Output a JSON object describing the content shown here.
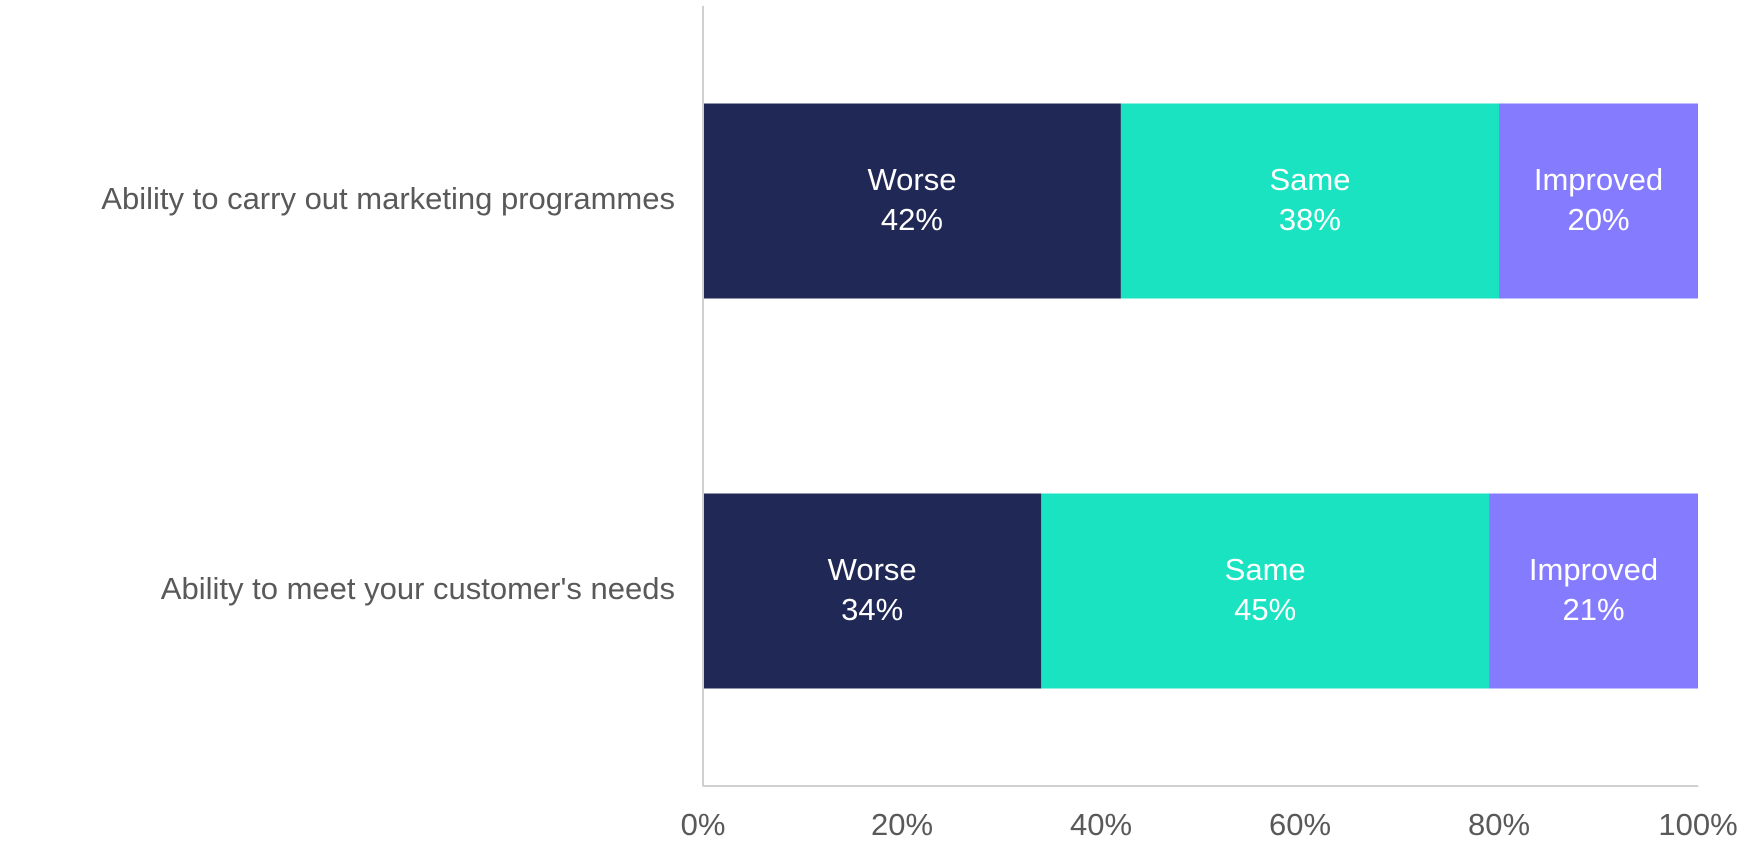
{
  "chart_data": {
    "type": "stacked_bar_horizontal",
    "categories": [
      "Ability to carry out marketing programmes",
      "Ability to meet your customer's needs"
    ],
    "series": [
      {
        "name": "Worse",
        "color": "#202855",
        "values": [
          42,
          34
        ],
        "value_labels": [
          "42%",
          "34%"
        ]
      },
      {
        "name": "Same",
        "color": "#1ae3c2",
        "values": [
          38,
          45
        ],
        "value_labels": [
          "38%",
          "45%"
        ]
      },
      {
        "name": "Improved",
        "color": "#857bff",
        "values": [
          20,
          21
        ],
        "value_labels": [
          "20%",
          "21%"
        ]
      }
    ],
    "xlim": [
      0,
      100
    ],
    "xticks": [
      {
        "value": 0,
        "label": "0%"
      },
      {
        "value": 20,
        "label": "20%"
      },
      {
        "value": 40,
        "label": "40%"
      },
      {
        "value": 60,
        "label": "60%"
      },
      {
        "value": 80,
        "label": "80%"
      },
      {
        "value": 100,
        "label": "100%"
      }
    ]
  }
}
